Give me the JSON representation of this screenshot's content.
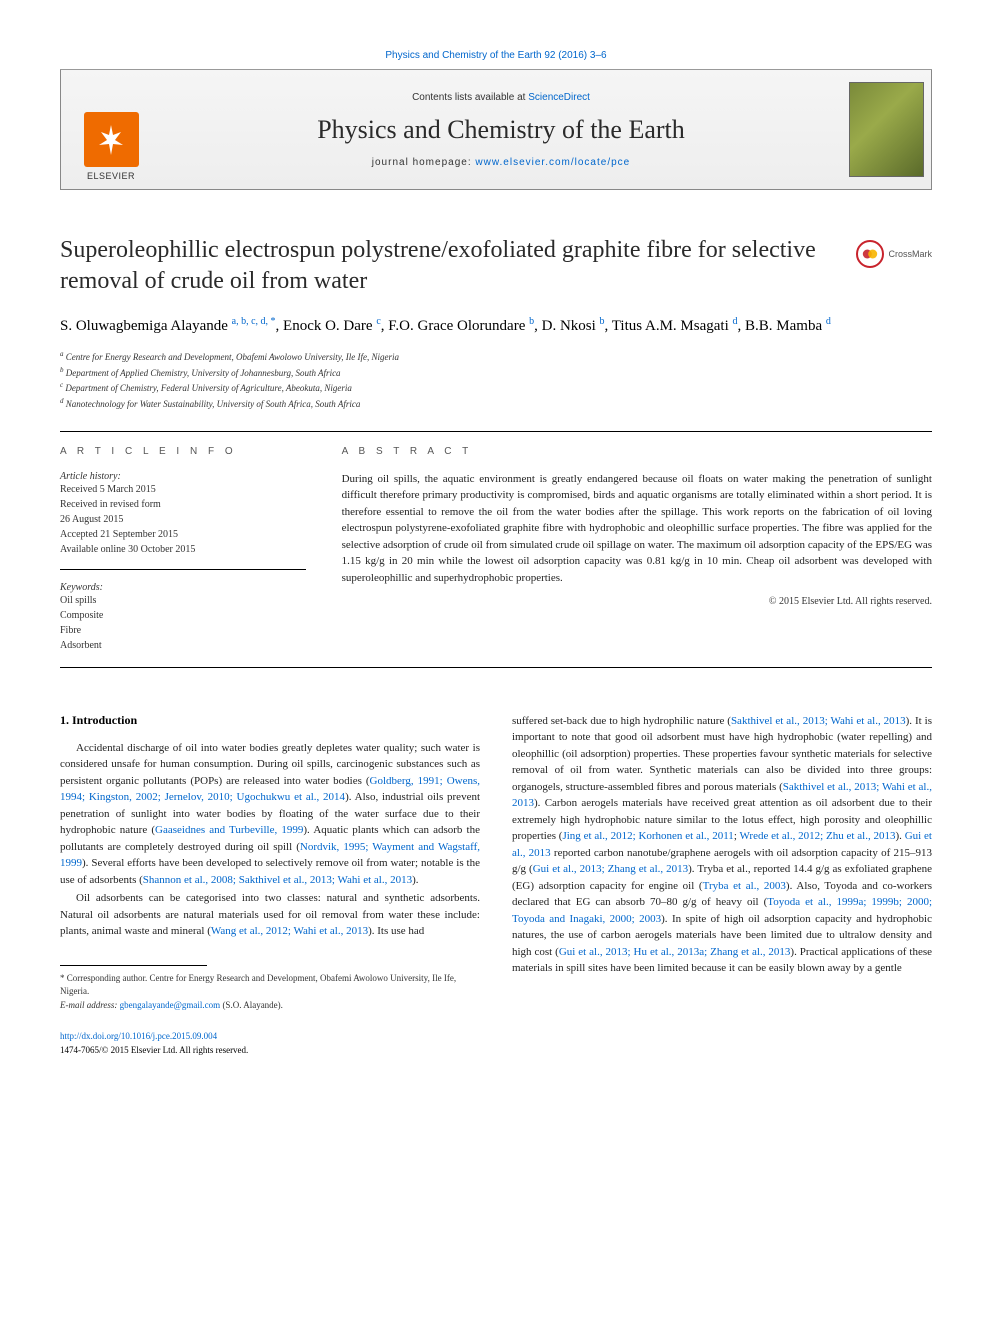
{
  "header": {
    "citation_link": "Physics and Chemistry of the Earth 92 (2016) 3–6",
    "contents_prefix": "Contents lists available at ",
    "contents_link": "ScienceDirect",
    "journal_name": "Physics and Chemistry of the Earth",
    "homepage_prefix": "journal homepage: ",
    "homepage_url": "www.elsevier.com/locate/pce",
    "elsevier_label": "ELSEVIER"
  },
  "crossmark": {
    "label": "CrossMark"
  },
  "article": {
    "title": "Superoleophillic electrospun polystrene/exofoliated graphite fibre for selective removal of crude oil from water",
    "authors_html": "S. Oluwagbemiga Alayande <sup>a, b, c, d, *</sup>, Enock O. Dare <sup>c</sup>, F.O. Grace Olorundare <sup>b</sup>, D. Nkosi <sup>b</sup>, Titus A.M. Msagati <sup>d</sup>, B.B. Mamba <sup>d</sup>",
    "affiliations": [
      {
        "sup": "a",
        "text": "Centre for Energy Research and Development, Obafemi Awolowo University, Ile Ife, Nigeria"
      },
      {
        "sup": "b",
        "text": "Department of Applied Chemistry, University of Johannesburg, South Africa"
      },
      {
        "sup": "c",
        "text": "Department of Chemistry, Federal University of Agriculture, Abeokuta, Nigeria"
      },
      {
        "sup": "d",
        "text": "Nanotechnology for Water Sustainability, University of South Africa, South Africa"
      }
    ]
  },
  "info": {
    "info_header": "A R T I C L E   I N F O",
    "history_label": "Article history:",
    "history": [
      "Received 5 March 2015",
      "Received in revised form",
      "26 August 2015",
      "Accepted 21 September 2015",
      "Available online 30 October 2015"
    ],
    "keywords_label": "Keywords:",
    "keywords": [
      "Oil spills",
      "Composite",
      "Fibre",
      "Adsorbent"
    ]
  },
  "abstract": {
    "header": "A B S T R A C T",
    "text": "During oil spills, the aquatic environment is greatly endangered because oil floats on water making the penetration of sunlight difficult therefore primary productivity is compromised, birds and aquatic organisms are totally eliminated within a short period. It is therefore essential to remove the oil from the water bodies after the spillage. This work reports on the fabrication of oil loving electrospun polystyrene-exofoliated graphite fibre with hydrophobic and oleophillic surface properties. The fibre was applied for the selective adsorption of crude oil from simulated crude oil spillage on water. The maximum oil adsorption capacity of the EPS/EG was 1.15 kg/g in 20 min while the lowest oil adsorption capacity was 0.81 kg/g in 10 min. Cheap oil adsorbent was developed with superoleophillic and superhydrophobic properties.",
    "copyright": "© 2015 Elsevier Ltd. All rights reserved."
  },
  "sections": {
    "intro_heading": "1.  Introduction",
    "col1_p1": "Accidental discharge of oil into water bodies greatly depletes water quality; such water is considered unsafe for human consumption. During oil spills, carcinogenic substances such as persistent organic pollutants (POPs) are released into water bodies (",
    "col1_p1_link": "Goldberg, 1991; Owens, 1994; Kingston, 2002; Jernelov, 2010; Ugochukwu et al., 2014",
    "col1_p1b": "). Also, industrial oils prevent penetration of sunlight into water bodies by floating of the water surface due to their hydrophobic nature (",
    "col1_p1_link2": "Gaaseidnes and Turbeville, 1999",
    "col1_p1c": "). Aquatic plants which can adsorb the pollutants are completely destroyed during oil spill (",
    "col1_p1_link3": "Nordvik, 1995; Wayment and Wagstaff, 1999",
    "col1_p1d": "). Several efforts have been developed to selectively remove oil from water; notable is the use of adsorbents (",
    "col1_p1_link4": "Shannon et al., 2008; Sakthivel et al., 2013; Wahi et al., 2013",
    "col1_p1e": ").",
    "col1_p2a": "Oil adsorbents can be categorised into two classes: natural and synthetic adsorbents. Natural oil adsorbents are natural materials used for oil removal from water these include: plants, animal waste and mineral (",
    "col1_p2_link": "Wang et al., 2012; Wahi et al., 2013",
    "col1_p2b": "). Its use had",
    "col2_a": "suffered set-back due to high hydrophilic nature (",
    "col2_link1": "Sakthivel et al., 2013; Wahi et al., 2013",
    "col2_b": "). It is important to note that good oil adsorbent must have high hydrophobic (water repelling) and oleophillic (oil adsorption) properties. These properties favour synthetic materials for selective removal of oil from water. Synthetic materials can also be divided into three groups: organogels, structure-assembled fibres and porous materials (",
    "col2_link2": "Sakthivel et al., 2013; Wahi et al., 2013",
    "col2_c": "). Carbon aerogels materials have received great attention as oil adsorbent due to their extremely high hydrophobic nature similar to the lotus effect, high porosity and oleophillic properties (",
    "col2_link3": "Jing et al., 2012; Korhonen et al., 2011",
    "col2_d": "; ",
    "col2_link4": "Wrede et al., 2012; Zhu et al., 2013",
    "col2_e": "). ",
    "col2_link5": "Gui et al., 2013",
    "col2_f": " reported carbon nanotube/graphene aerogels with oil adsorption capacity of 215–913 g/g (",
    "col2_link6": "Gui et al., 2013; Zhang et al., 2013",
    "col2_g": "). Tryba et al., reported 14.4 g/g as exfoliated graphene (EG) adsorption capacity for engine oil (",
    "col2_link7": "Tryba et al., 2003",
    "col2_h": "). Also, Toyoda and co-workers declared that EG can absorb 70–80 g/g of heavy oil (",
    "col2_link8": "Toyoda et al., 1999a; 1999b; 2000; Toyoda and Inagaki, 2000; 2003",
    "col2_i": "). In spite of high oil adsorption capacity and hydrophobic natures, the use of carbon aerogels materials have been limited due to ultralow density and high cost (",
    "col2_link9": "Gui et al., 2013; Hu et al., 2013a; Zhang et al., 2013",
    "col2_j": "). Practical applications of these materials in spill sites have been limited because it can be easily blown away by a gentle"
  },
  "footnotes": {
    "corresponding": "* Corresponding author. Centre for Energy Research and Development, Obafemi Awolowo University, Ile Ife, Nigeria.",
    "email_label": "E-mail address: ",
    "email": "gbengalayande@gmail.com",
    "email_suffix": " (S.O. Alayande)."
  },
  "doi": {
    "url": "http://dx.doi.org/10.1016/j.pce.2015.09.004",
    "issn_line": "1474-7065/© 2015 Elsevier Ltd. All rights reserved."
  },
  "colors": {
    "link": "#0066cc",
    "elsevier_orange": "#ef6b00",
    "crossmark_red": "#c8232c",
    "cover_green_a": "#7a8a3a",
    "cover_green_b": "#9aaa4a",
    "cover_green_c": "#5a6a2a"
  }
}
